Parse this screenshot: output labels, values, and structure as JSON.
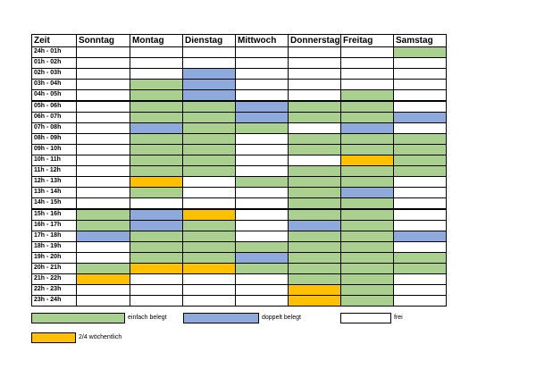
{
  "table": {
    "header": [
      "Zeit",
      "Sonntag",
      "Montag",
      "Dienstag",
      "Mittwoch",
      "Donnerstag",
      "Freitag",
      "Samstag"
    ],
    "rows": [
      {
        "label": "24h - 01h",
        "cells": [
          "#ffffff",
          "#ffffff",
          "#ffffff",
          "#ffffff",
          "#ffffff",
          "#ffffff",
          "#a9d08e"
        ]
      },
      {
        "label": "01h - 02h",
        "cells": [
          "#ffffff",
          "#ffffff",
          "#ffffff",
          "#ffffff",
          "#ffffff",
          "#ffffff",
          "#ffffff"
        ]
      },
      {
        "label": "02h - 03h",
        "cells": [
          "#ffffff",
          "#ffffff",
          "#8ea9db",
          "#ffffff",
          "#ffffff",
          "#ffffff",
          "#ffffff"
        ]
      },
      {
        "label": "03h - 04h",
        "cells": [
          "#ffffff",
          "#a9d08e",
          "#8ea9db",
          "#ffffff",
          "#ffffff",
          "#ffffff",
          "#ffffff"
        ]
      },
      {
        "label": "04h - 05h",
        "cells": [
          "#ffffff",
          "#a9d08e",
          "#8ea9db",
          "#ffffff",
          "#ffffff",
          "#a9d08e",
          "#ffffff"
        ]
      },
      {
        "label": "05h - 06h",
        "cells": [
          "#ffffff",
          "#a9d08e",
          "#a9d08e",
          "#8ea9db",
          "#a9d08e",
          "#a9d08e",
          "#ffffff"
        ]
      },
      {
        "label": "06h - 07h",
        "cells": [
          "#ffffff",
          "#a9d08e",
          "#a9d08e",
          "#8ea9db",
          "#a9d08e",
          "#a9d08e",
          "#8ea9db"
        ]
      },
      {
        "label": "07h - 08h",
        "cells": [
          "#ffffff",
          "#8ea9db",
          "#a9d08e",
          "#a9d08e",
          "#ffffff",
          "#8ea9db",
          "#ffffff"
        ]
      },
      {
        "label": "08h - 09h",
        "cells": [
          "#ffffff",
          "#a9d08e",
          "#a9d08e",
          "#ffffff",
          "#a9d08e",
          "#a9d08e",
          "#a9d08e"
        ]
      },
      {
        "label": "09h - 10h",
        "cells": [
          "#ffffff",
          "#a9d08e",
          "#a9d08e",
          "#ffffff",
          "#a9d08e",
          "#a9d08e",
          "#a9d08e"
        ]
      },
      {
        "label": "10h - 11h",
        "cells": [
          "#ffffff",
          "#a9d08e",
          "#a9d08e",
          "#ffffff",
          "#ffffff",
          "#ffc000",
          "#a9d08e"
        ]
      },
      {
        "label": "11h - 12h",
        "cells": [
          "#ffffff",
          "#a9d08e",
          "#a9d08e",
          "#ffffff",
          "#a9d08e",
          "#a9d08e",
          "#a9d08e"
        ]
      },
      {
        "label": "12h - 13h",
        "cells": [
          "#ffffff",
          "#ffc000",
          "#ffffff",
          "#a9d08e",
          "#a9d08e",
          "#a9d08e",
          "#ffffff"
        ]
      },
      {
        "label": "13h - 14h",
        "cells": [
          "#ffffff",
          "#a9d08e",
          "#ffffff",
          "#ffffff",
          "#a9d08e",
          "#8ea9db",
          "#ffffff"
        ]
      },
      {
        "label": "14h - 15h",
        "cells": [
          "#ffffff",
          "#ffffff",
          "#ffffff",
          "#ffffff",
          "#a9d08e",
          "#a9d08e",
          "#ffffff"
        ]
      },
      {
        "label": "15h - 16h",
        "cells": [
          "#a9d08e",
          "#8ea9db",
          "#ffc000",
          "#ffffff",
          "#a9d08e",
          "#a9d08e",
          "#ffffff"
        ]
      },
      {
        "label": "16h - 17h",
        "cells": [
          "#a9d08e",
          "#8ea9db",
          "#a9d08e",
          "#ffffff",
          "#8ea9db",
          "#a9d08e",
          "#ffffff"
        ]
      },
      {
        "label": "17h - 18h",
        "cells": [
          "#8ea9db",
          "#a9d08e",
          "#a9d08e",
          "#ffffff",
          "#a9d08e",
          "#a9d08e",
          "#8ea9db"
        ]
      },
      {
        "label": "18h - 19h",
        "cells": [
          "#ffffff",
          "#a9d08e",
          "#a9d08e",
          "#a9d08e",
          "#a9d08e",
          "#a9d08e",
          "#ffffff"
        ]
      },
      {
        "label": "19h - 20h",
        "cells": [
          "#ffffff",
          "#a9d08e",
          "#a9d08e",
          "#8ea9db",
          "#a9d08e",
          "#a9d08e",
          "#a9d08e"
        ]
      },
      {
        "label": "20h - 21h",
        "cells": [
          "#a9d08e",
          "#ffc000",
          "#ffc000",
          "#a9d08e",
          "#a9d08e",
          "#a9d08e",
          "#a9d08e"
        ]
      },
      {
        "label": "21h - 22h",
        "cells": [
          "#ffc000",
          "#ffffff",
          "#ffffff",
          "#ffffff",
          "#a9d08e",
          "#a9d08e",
          "#ffffff"
        ]
      },
      {
        "label": "22h - 23h",
        "cells": [
          "#ffffff",
          "#ffffff",
          "#ffffff",
          "#ffffff",
          "#ffc000",
          "#a9d08e",
          "#ffffff"
        ]
      },
      {
        "label": "23h - 24h",
        "cells": [
          "#ffffff",
          "#ffffff",
          "#ffffff",
          "#ffffff",
          "#ffc000",
          "#a9d08e",
          "#ffffff"
        ]
      }
    ]
  },
  "legend": [
    {
      "label": "einfach belegt",
      "color": "#a9d08e"
    },
    {
      "label": "doppelt belegt",
      "color": "#8ea9db"
    },
    {
      "label": "frei",
      "color": "#ffffff"
    },
    {
      "label": "2/4 wöchentlich",
      "color": "#ffc000"
    }
  ]
}
